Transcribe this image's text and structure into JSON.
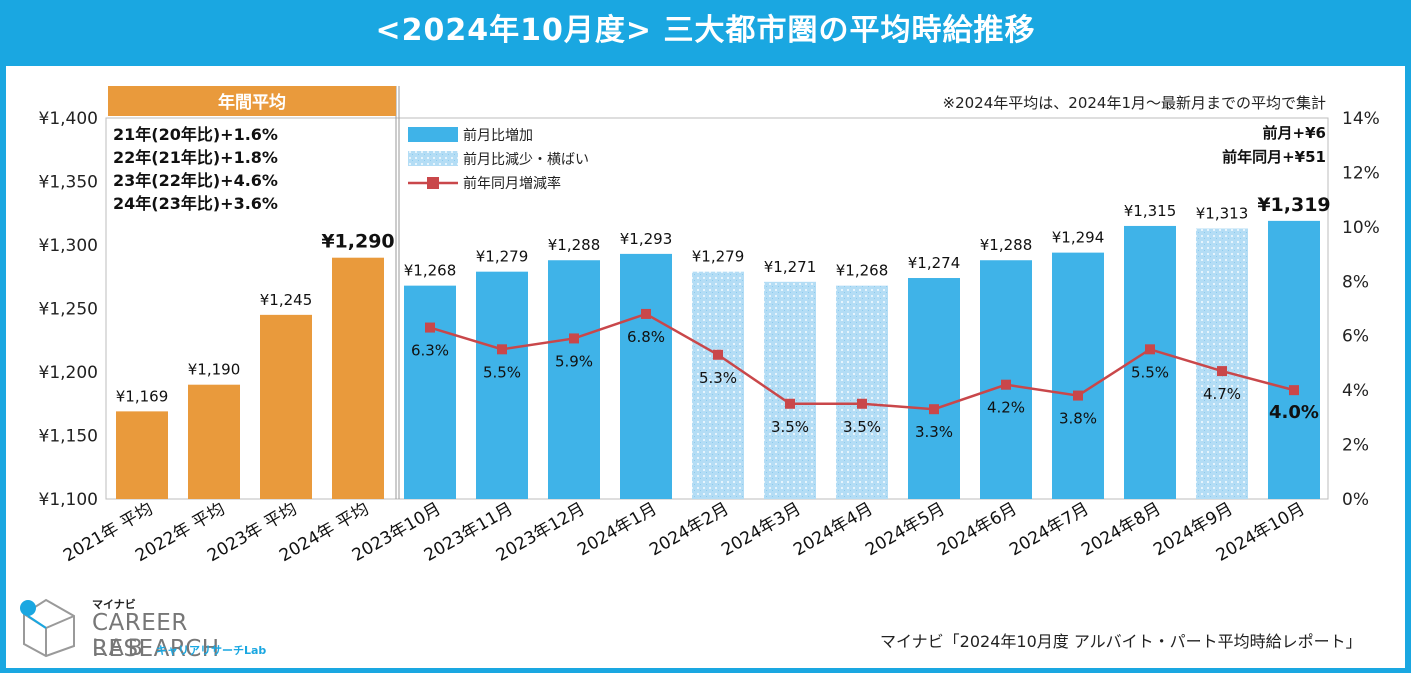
{
  "title": "<2024年10月度> 三大都市圏の平均時給推移",
  "note": "※2024年平均は、2024年1月～最新月までの平均で集計",
  "annual_header": "年間平均",
  "annual_notes": [
    "21年(20年比)+1.6%",
    "22年(21年比)+1.8%",
    "23年(22年比)+4.6%",
    "24年(23年比)+3.6%"
  ],
  "summary": {
    "mom": "前月+¥6",
    "yoy": "前年同月+¥51"
  },
  "legend": {
    "increase": "前月比増加",
    "decrease": "前月比減少・横ばい",
    "rate": "前年同月増減率"
  },
  "colors": {
    "annual": "#e99a3c",
    "increase": "#3fb3e8",
    "decrease": "#b4ddf5",
    "line": "#c9474a",
    "header_blue": "#1aa7e1"
  },
  "logo": {
    "small": "マイナビ",
    "main": "CAREER RESEARCH",
    "lab": "LAB",
    "kana": "キャリアリサーチLab"
  },
  "source": "マイナビ「2024年10月度 アルバイト・パート平均時給レポート」",
  "chart_data": {
    "type": "bar",
    "categories": [
      "2021年 平均",
      "2022年 平均",
      "2023年 平均",
      "2024年 平均",
      "2023年10月",
      "2023年11月",
      "2023年12月",
      "2024年1月",
      "2024年2月",
      "2024年3月",
      "2024年4月",
      "2024年5月",
      "2024年6月",
      "2024年7月",
      "2024年8月",
      "2024年9月",
      "2024年10月"
    ],
    "values": [
      1169,
      1190,
      1245,
      1290,
      1268,
      1279,
      1288,
      1293,
      1279,
      1271,
      1268,
      1274,
      1288,
      1294,
      1315,
      1313,
      1319
    ],
    "value_labels": [
      "¥1,169",
      "¥1,190",
      "¥1,245",
      "¥1,290",
      "¥1,268",
      "¥1,279",
      "¥1,288",
      "¥1,293",
      "¥1,279",
      "¥1,271",
      "¥1,268",
      "¥1,274",
      "¥1,288",
      "¥1,294",
      "¥1,315",
      "¥1,313",
      "¥1,319"
    ],
    "bar_kinds": [
      "annual",
      "annual",
      "annual",
      "annual",
      "increase",
      "increase",
      "increase",
      "increase",
      "decrease",
      "decrease",
      "decrease",
      "increase",
      "increase",
      "increase",
      "increase",
      "decrease",
      "increase"
    ],
    "emphasis": [
      false,
      false,
      false,
      true,
      false,
      false,
      false,
      false,
      false,
      false,
      false,
      false,
      false,
      false,
      false,
      false,
      true
    ],
    "yoy_rate": [
      null,
      null,
      null,
      null,
      6.3,
      5.5,
      5.9,
      6.8,
      5.3,
      3.5,
      3.5,
      3.3,
      4.2,
      3.8,
      5.5,
      4.7,
      4.0
    ],
    "yoy_labels": [
      "",
      "",
      "",
      "",
      "6.3%",
      "5.5%",
      "5.9%",
      "6.8%",
      "5.3%",
      "3.5%",
      "3.5%",
      "3.3%",
      "4.2%",
      "3.8%",
      "5.5%",
      "4.7%",
      "4.0%"
    ],
    "ylim": [
      1100,
      1400
    ],
    "y_ticks": [
      1100,
      1150,
      1200,
      1250,
      1300,
      1350,
      1400
    ],
    "y_tick_labels": [
      "¥1,100",
      "¥1,150",
      "¥1,200",
      "¥1,250",
      "¥1,300",
      "¥1,350",
      "¥1,400"
    ],
    "y2lim": [
      0,
      14
    ],
    "y2_ticks": [
      0,
      2,
      4,
      6,
      8,
      10,
      12,
      14
    ],
    "y2_tick_labels": [
      "0%",
      "2%",
      "4%",
      "6%",
      "8%",
      "10%",
      "12%",
      "14%"
    ]
  }
}
